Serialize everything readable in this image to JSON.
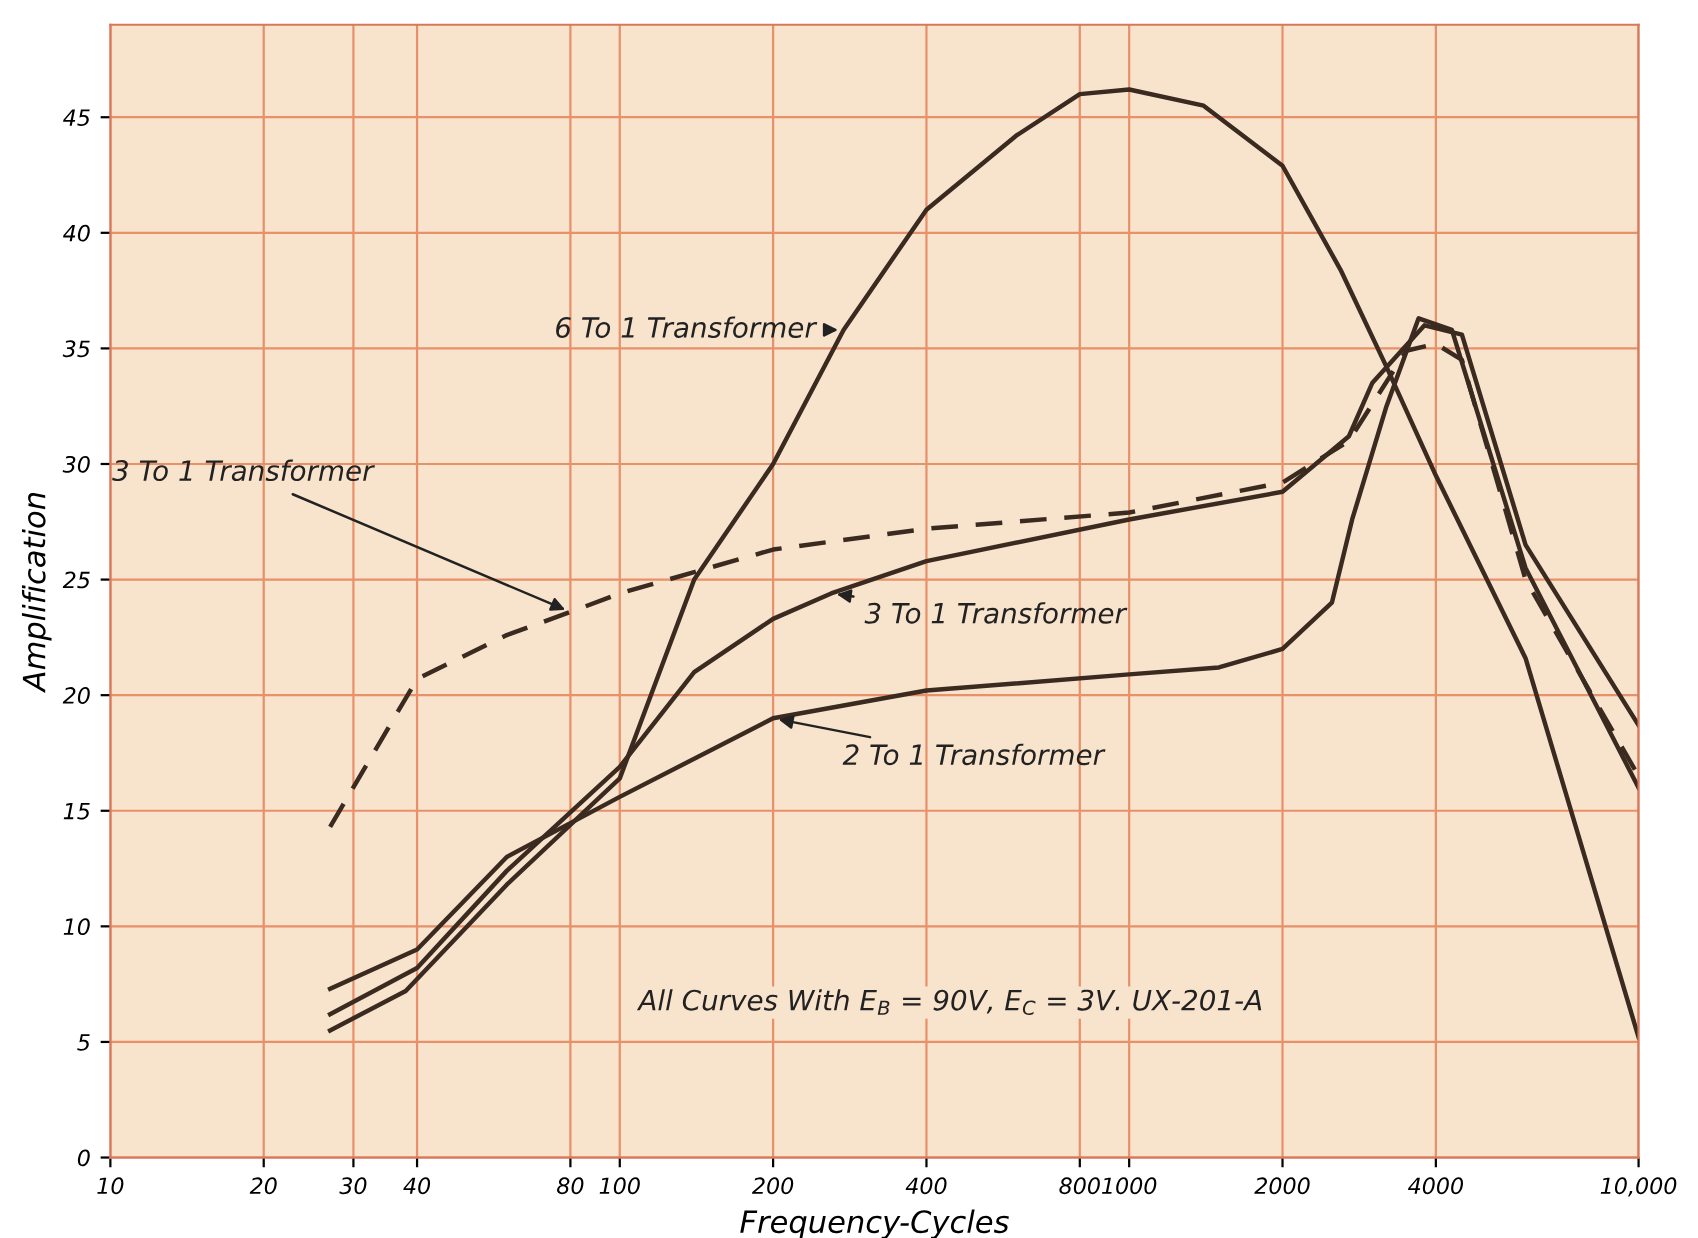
{
  "chart_data": {
    "type": "line",
    "xlabel": "Frequency-Cycles",
    "ylabel": "Amplification",
    "log": "x",
    "xlim": [
      10,
      10000
    ],
    "ylim": [
      0,
      49
    ],
    "xticks": [
      10,
      20,
      30,
      40,
      80,
      100,
      200,
      400,
      800,
      1000,
      2000,
      4000,
      {
        "value": 10000,
        "label": "10,000"
      }
    ],
    "yticks": [
      0,
      5,
      10,
      15,
      20,
      25,
      30,
      35,
      40,
      45
    ],
    "grid": true,
    "legend": false,
    "marker": "none",
    "annotations": [
      "All Curves With E$_{B}$ = 90V, E$_{C}$ = 3V. UX-201-A"
    ],
    "series": [
      {
        "name": "6 To 1 Transformer",
        "color": "#3a2a20",
        "line_style": "solid",
        "x": [
          27,
          38,
          60,
          100,
          140,
          200,
          275,
          400,
          600,
          800,
          1000,
          1400,
          2000,
          2600,
          3200,
          4000,
          6000,
          10000
        ],
        "values": [
          5.5,
          7.2,
          11.8,
          16.4,
          25,
          30,
          35.8,
          41,
          44.2,
          46,
          46.2,
          45.5,
          42.9,
          38.4,
          34.2,
          29.5,
          21.6,
          5.2
        ]
      },
      {
        "name": "3 To 1 Transformer",
        "color": "#3a2a20",
        "line_style": "solid",
        "x": [
          27,
          40,
          60,
          100,
          140,
          200,
          260,
          400,
          1000,
          2000,
          2700,
          3000,
          3800,
          4500,
          6000,
          10000
        ],
        "values": [
          6.2,
          8.2,
          12.4,
          16.9,
          21,
          23.3,
          24.4,
          25.8,
          27.6,
          28.8,
          31.2,
          33.5,
          36,
          35.6,
          26.5,
          18.7
        ]
      },
      {
        "name": "2 To 1 Transformer",
        "color": "#3a2a20",
        "line_style": "solid",
        "x": [
          27,
          40,
          60,
          100,
          200,
          400,
          1000,
          1500,
          2000,
          2500,
          2740,
          3200,
          3700,
          4300,
          6000,
          10000
        ],
        "values": [
          7.3,
          9,
          13,
          15.6,
          19,
          20.2,
          20.9,
          21.2,
          22,
          24,
          27.6,
          32.5,
          36.3,
          35.8,
          25.5,
          16
        ]
      },
      {
        "name": "3 To 1 Transformer",
        "color": "#3a2a20",
        "line_style": "dashed",
        "x": [
          27,
          40,
          60,
          80,
          100,
          200,
          400,
          1000,
          2000,
          2700,
          3500,
          4000,
          4500,
          6000,
          10000
        ],
        "values": [
          14.3,
          20.7,
          22.6,
          23.6,
          24.4,
          26.3,
          27.2,
          27.9,
          29.2,
          31,
          34.9,
          35.2,
          34.5,
          25,
          16.5
        ]
      }
    ]
  }
}
